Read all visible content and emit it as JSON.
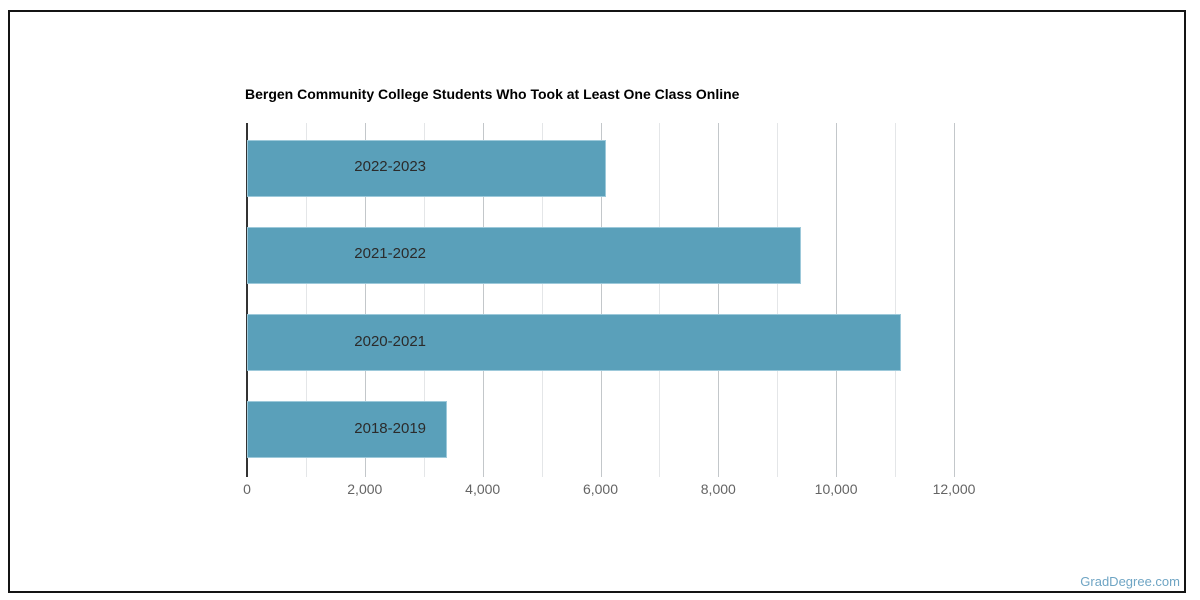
{
  "frame": {
    "border_color": "#141414",
    "background": "#ffffff"
  },
  "watermark": {
    "text": "GradDegree.com",
    "color": "#6fa5c4"
  },
  "chart_data": {
    "type": "bar",
    "orientation": "horizontal",
    "title": "Bergen Community College Students Who Took at Least One Class Online",
    "categories": [
      "2022-2023",
      "2021-2022",
      "2020-2021",
      "2018-2019"
    ],
    "values": [
      6100,
      9400,
      11100,
      3400
    ],
    "xlabel": "",
    "ylabel": "",
    "xlim": [
      0,
      12900
    ],
    "x_major_tick_interval": 2000,
    "x_minor_tick_interval": 1000,
    "x_tick_labels": [
      "0",
      "2,000",
      "4,000",
      "6,000",
      "8,000",
      "10,000",
      "12,000"
    ],
    "legend": "none",
    "grid": true,
    "bar_color": "#5aa0ba",
    "bar_edge_color": "#9dc9da",
    "major_gridline_color": "#c3c7ca",
    "minor_gridline_color": "#e4e6e8",
    "baseline_color": "#333333",
    "axis_text_color": "#646464",
    "category_text_color": "#2b2b2b",
    "title_color": "#000000"
  }
}
